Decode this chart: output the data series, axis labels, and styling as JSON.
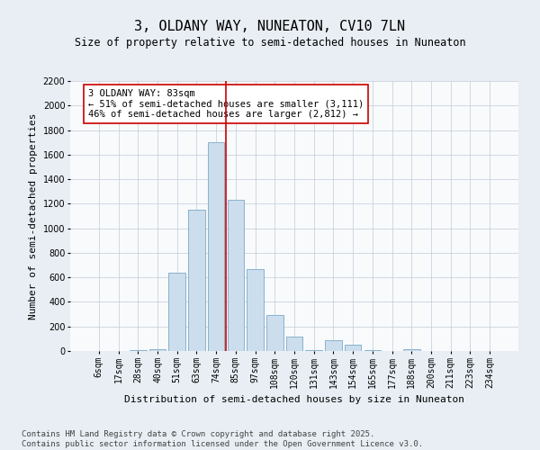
{
  "title": "3, OLDANY WAY, NUNEATON, CV10 7LN",
  "subtitle": "Size of property relative to semi-detached houses in Nuneaton",
  "xlabel": "Distribution of semi-detached houses by size in Nuneaton",
  "ylabel": "Number of semi-detached properties",
  "bar_labels": [
    "6sqm",
    "17sqm",
    "28sqm",
    "40sqm",
    "51sqm",
    "63sqm",
    "74sqm",
    "85sqm",
    "97sqm",
    "108sqm",
    "120sqm",
    "131sqm",
    "143sqm",
    "154sqm",
    "165sqm",
    "177sqm",
    "188sqm",
    "200sqm",
    "211sqm",
    "223sqm",
    "234sqm"
  ],
  "bar_values": [
    0,
    2,
    5,
    12,
    640,
    1150,
    1700,
    1230,
    670,
    290,
    120,
    5,
    85,
    50,
    10,
    2,
    15,
    2,
    0,
    0,
    0
  ],
  "bar_color": "#ccdded",
  "bar_edge_color": "#7aaac8",
  "vline_x": 6.5,
  "vline_color": "#cc0000",
  "annotation_text": "3 OLDANY WAY: 83sqm\n← 51% of semi-detached houses are smaller (3,111)\n46% of semi-detached houses are larger (2,812) →",
  "annotation_box_facecolor": "#ffffff",
  "annotation_box_edgecolor": "#cc0000",
  "ylim": [
    0,
    2200
  ],
  "yticks": [
    0,
    200,
    400,
    600,
    800,
    1000,
    1200,
    1400,
    1600,
    1800,
    2000,
    2200
  ],
  "bg_color": "#e8eef4",
  "plot_bg_color": "#f8fafc",
  "footer_text": "Contains HM Land Registry data © Crown copyright and database right 2025.\nContains public sector information licensed under the Open Government Licence v3.0.",
  "title_fontsize": 11,
  "subtitle_fontsize": 8.5,
  "axis_label_fontsize": 8,
  "tick_fontsize": 7,
  "annotation_fontsize": 7.5,
  "footer_fontsize": 6.5
}
